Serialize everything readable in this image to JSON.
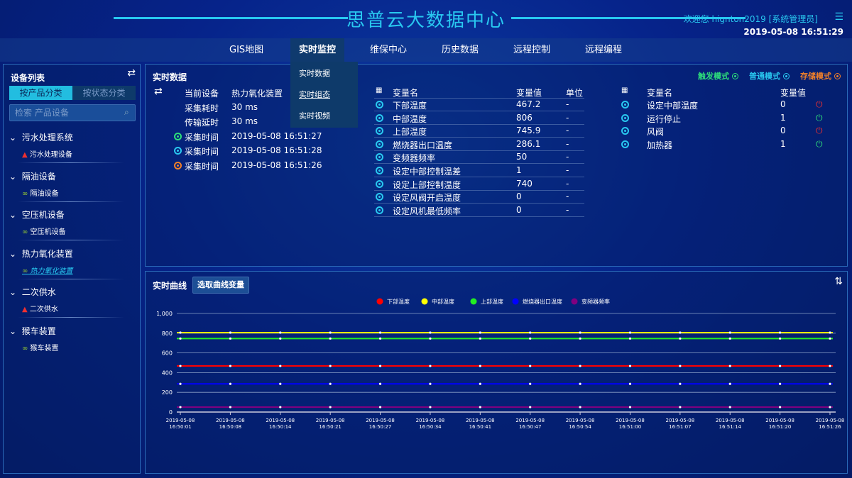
{
  "header": {
    "title": "思普云大数据中心",
    "welcome": "欢迎您  hignton2019 [系统管理员]",
    "datetime": "2019-05-08 16:51:29",
    "menu_icon": "list-icon"
  },
  "nav": [
    "GIS地图",
    "实时监控",
    "维保中心",
    "历史数据",
    "远程控制",
    "远程编程"
  ],
  "dropdown": [
    "实时数据",
    "实时组态",
    "实时视频"
  ],
  "sidebar": {
    "title": "设备列表",
    "tabs": [
      "按产品分类",
      "按状态分类"
    ],
    "search_placeholder": "检索 产品设备",
    "groups": [
      {
        "name": "污水处理系统",
        "item": "污水处理设备",
        "status": "alarm"
      },
      {
        "name": "隔油设备",
        "item": "隔油设备",
        "status": "link"
      },
      {
        "name": "空压机设备",
        "item": "空压机设备",
        "status": "link"
      },
      {
        "name": "热力氧化装置",
        "item": "热力氧化装置",
        "status": "link"
      },
      {
        "name": "二次供水",
        "item": "二次供水",
        "status": "alarm"
      },
      {
        "name": "猴车装置",
        "item": "猴车装置",
        "status": "link"
      }
    ]
  },
  "realtime": {
    "title": "实时数据",
    "modes": [
      {
        "label": "触发模式",
        "color": "#2ee07a"
      },
      {
        "label": "普通模式",
        "color": "#29c8f0"
      },
      {
        "label": "存储模式",
        "color": "#f0802a"
      }
    ],
    "info": [
      {
        "k": "当前设备",
        "v": "热力氧化装置"
      },
      {
        "k": "采集耗时",
        "v": "30 ms"
      },
      {
        "k": "传输延时",
        "v": "30 ms"
      },
      {
        "k": "采集时间",
        "v": "2019-05-08 16:51:27",
        "color": "#2ee07a"
      },
      {
        "k": "采集时间",
        "v": "2019-05-08 16:51:28",
        "color": "#29c8f0"
      },
      {
        "k": "采集时间",
        "v": "2019-05-08 16:51:26",
        "color": "#f0802a"
      }
    ],
    "table1": {
      "headers": [
        "变量名",
        "变量值",
        "单位"
      ],
      "rows": [
        [
          "下部温度",
          "467.2",
          "-"
        ],
        [
          "中部温度",
          "806",
          "-"
        ],
        [
          "上部温度",
          "745.9",
          "-"
        ],
        [
          "燃烧器出口温度",
          "286.1",
          "-"
        ],
        [
          "变频器频率",
          "50",
          "-"
        ],
        [
          "设定中部控制温差",
          "1",
          "-"
        ],
        [
          "设定上部控制温度",
          "740",
          "-"
        ],
        [
          "设定风阀开启温度",
          "0",
          "-"
        ],
        [
          "设定风机最低频率",
          "0",
          "-"
        ]
      ]
    },
    "table2": {
      "headers": [
        "变量名",
        "变量值"
      ],
      "rows": [
        [
          "设定中部温度",
          "0",
          "off"
        ],
        [
          "运行停止",
          "1",
          "on"
        ],
        [
          "风阀",
          "0",
          "off"
        ],
        [
          "加热器",
          "1",
          "on"
        ]
      ]
    }
  },
  "curve": {
    "title": "实时曲线",
    "button": "选取曲线变量"
  },
  "chart_data": {
    "type": "line",
    "ylim": [
      0,
      1000
    ],
    "yticks": [
      "0",
      "200",
      "400",
      "600",
      "800",
      "1,000"
    ],
    "x": [
      "2019-05-08 16:50:01",
      "2019-05-08 16:50:08",
      "2019-05-08 16:50:14",
      "2019-05-08 16:50:21",
      "2019-05-08 16:50:27",
      "2019-05-08 16:50:34",
      "2019-05-08 16:50:41",
      "2019-05-08 16:50:47",
      "2019-05-08 16:50:54",
      "2019-05-08 16:51:00",
      "2019-05-08 16:51:07",
      "2019-05-08 16:51:14",
      "2019-05-08 16:51:20",
      "2019-05-08 16:51:26"
    ],
    "series": [
      {
        "name": "下部温度",
        "color": "#ff0000",
        "value": 467.2
      },
      {
        "name": "中部温度",
        "color": "#ffff00",
        "value": 806
      },
      {
        "name": "上部温度",
        "color": "#22ee22",
        "value": 745.9
      },
      {
        "name": "燃烧器出口温度",
        "color": "#0000ff",
        "value": 286.1
      },
      {
        "name": "变频器频率",
        "color": "#800080",
        "value": 50
      }
    ],
    "legend": "top"
  }
}
